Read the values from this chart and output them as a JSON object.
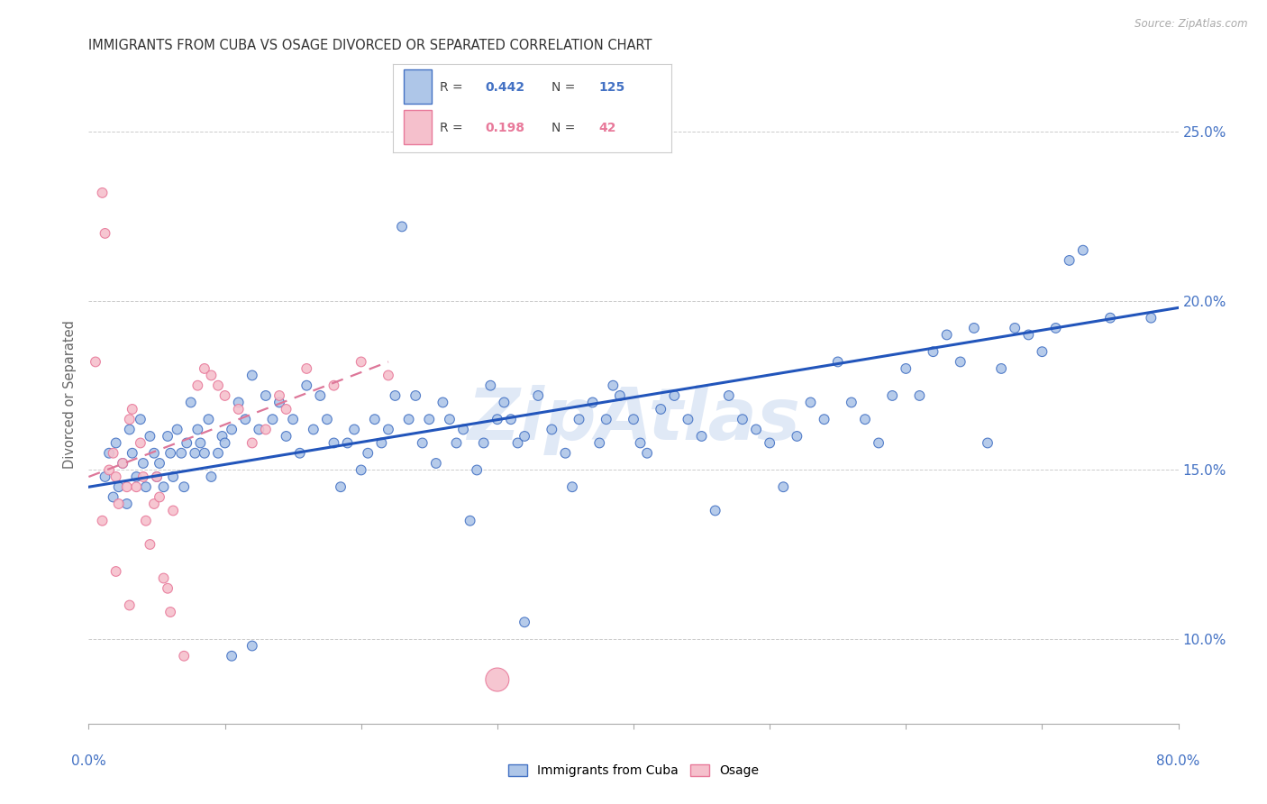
{
  "title": "IMMIGRANTS FROM CUBA VS OSAGE DIVORCED OR SEPARATED CORRELATION CHART",
  "source": "Source: ZipAtlas.com",
  "ylabel": "Divorced or Separated",
  "ytick_vals": [
    10.0,
    15.0,
    20.0,
    25.0
  ],
  "ytick_labels": [
    "10.0%",
    "15.0%",
    "20.0%",
    "25.0%"
  ],
  "xlim": [
    0.0,
    80.0
  ],
  "ylim": [
    7.5,
    27.0
  ],
  "legend_blue_r": "0.442",
  "legend_blue_n": "125",
  "legend_pink_r": "0.198",
  "legend_pink_n": "42",
  "blue_fill": "#aec6e8",
  "pink_fill": "#f5c0cc",
  "blue_edge": "#4472c4",
  "pink_edge": "#e8799a",
  "blue_line_color": "#2255bb",
  "pink_line_color": "#dd7799",
  "watermark": "ZipAtlas",
  "watermark_color": "#c8d8f0",
  "blue_scatter": [
    [
      1.2,
      14.8
    ],
    [
      1.5,
      15.5
    ],
    [
      1.8,
      14.2
    ],
    [
      2.0,
      15.8
    ],
    [
      2.2,
      14.5
    ],
    [
      2.5,
      15.2
    ],
    [
      2.8,
      14.0
    ],
    [
      3.0,
      16.2
    ],
    [
      3.2,
      15.5
    ],
    [
      3.5,
      14.8
    ],
    [
      3.8,
      16.5
    ],
    [
      4.0,
      15.2
    ],
    [
      4.2,
      14.5
    ],
    [
      4.5,
      16.0
    ],
    [
      4.8,
      15.5
    ],
    [
      5.0,
      14.8
    ],
    [
      5.2,
      15.2
    ],
    [
      5.5,
      14.5
    ],
    [
      5.8,
      16.0
    ],
    [
      6.0,
      15.5
    ],
    [
      6.2,
      14.8
    ],
    [
      6.5,
      16.2
    ],
    [
      6.8,
      15.5
    ],
    [
      7.0,
      14.5
    ],
    [
      7.2,
      15.8
    ],
    [
      7.5,
      17.0
    ],
    [
      7.8,
      15.5
    ],
    [
      8.0,
      16.2
    ],
    [
      8.2,
      15.8
    ],
    [
      8.5,
      15.5
    ],
    [
      8.8,
      16.5
    ],
    [
      9.0,
      14.8
    ],
    [
      9.5,
      15.5
    ],
    [
      9.8,
      16.0
    ],
    [
      10.0,
      15.8
    ],
    [
      10.5,
      16.2
    ],
    [
      11.0,
      17.0
    ],
    [
      11.5,
      16.5
    ],
    [
      12.0,
      17.8
    ],
    [
      12.5,
      16.2
    ],
    [
      13.0,
      17.2
    ],
    [
      13.5,
      16.5
    ],
    [
      14.0,
      17.0
    ],
    [
      14.5,
      16.0
    ],
    [
      15.0,
      16.5
    ],
    [
      15.5,
      15.5
    ],
    [
      16.0,
      17.5
    ],
    [
      16.5,
      16.2
    ],
    [
      17.0,
      17.2
    ],
    [
      17.5,
      16.5
    ],
    [
      18.0,
      15.8
    ],
    [
      18.5,
      14.5
    ],
    [
      19.0,
      15.8
    ],
    [
      19.5,
      16.2
    ],
    [
      20.0,
      15.0
    ],
    [
      20.5,
      15.5
    ],
    [
      21.0,
      16.5
    ],
    [
      21.5,
      15.8
    ],
    [
      22.0,
      16.2
    ],
    [
      22.5,
      17.2
    ],
    [
      23.0,
      22.2
    ],
    [
      23.5,
      16.5
    ],
    [
      24.0,
      17.2
    ],
    [
      24.5,
      15.8
    ],
    [
      25.0,
      16.5
    ],
    [
      25.5,
      15.2
    ],
    [
      26.0,
      17.0
    ],
    [
      26.5,
      16.5
    ],
    [
      27.0,
      15.8
    ],
    [
      27.5,
      16.2
    ],
    [
      28.0,
      13.5
    ],
    [
      28.5,
      15.0
    ],
    [
      29.0,
      15.8
    ],
    [
      29.5,
      17.5
    ],
    [
      30.0,
      16.5
    ],
    [
      30.5,
      17.0
    ],
    [
      31.0,
      16.5
    ],
    [
      31.5,
      15.8
    ],
    [
      32.0,
      16.0
    ],
    [
      33.0,
      17.2
    ],
    [
      34.0,
      16.2
    ],
    [
      35.0,
      15.5
    ],
    [
      35.5,
      14.5
    ],
    [
      36.0,
      16.5
    ],
    [
      37.0,
      17.0
    ],
    [
      37.5,
      15.8
    ],
    [
      38.0,
      16.5
    ],
    [
      38.5,
      17.5
    ],
    [
      39.0,
      17.2
    ],
    [
      40.0,
      16.5
    ],
    [
      40.5,
      15.8
    ],
    [
      41.0,
      15.5
    ],
    [
      42.0,
      16.8
    ],
    [
      43.0,
      17.2
    ],
    [
      44.0,
      16.5
    ],
    [
      45.0,
      16.0
    ],
    [
      46.0,
      13.8
    ],
    [
      47.0,
      17.2
    ],
    [
      48.0,
      16.5
    ],
    [
      49.0,
      16.2
    ],
    [
      50.0,
      15.8
    ],
    [
      51.0,
      14.5
    ],
    [
      52.0,
      16.0
    ],
    [
      53.0,
      17.0
    ],
    [
      54.0,
      16.5
    ],
    [
      55.0,
      18.2
    ],
    [
      56.0,
      17.0
    ],
    [
      57.0,
      16.5
    ],
    [
      58.0,
      15.8
    ],
    [
      59.0,
      17.2
    ],
    [
      60.0,
      18.0
    ],
    [
      61.0,
      17.2
    ],
    [
      62.0,
      18.5
    ],
    [
      63.0,
      19.0
    ],
    [
      64.0,
      18.2
    ],
    [
      65.0,
      19.2
    ],
    [
      66.0,
      15.8
    ],
    [
      67.0,
      18.0
    ],
    [
      68.0,
      19.2
    ],
    [
      69.0,
      19.0
    ],
    [
      70.0,
      18.5
    ],
    [
      71.0,
      19.2
    ],
    [
      72.0,
      21.2
    ],
    [
      73.0,
      21.5
    ],
    [
      75.0,
      19.5
    ],
    [
      78.0,
      19.5
    ],
    [
      10.5,
      9.5
    ],
    [
      12.0,
      9.8
    ],
    [
      32.0,
      10.5
    ]
  ],
  "blue_scatter_sizes": 60,
  "pink_scatter": [
    [
      0.5,
      18.2
    ],
    [
      1.0,
      23.2
    ],
    [
      1.2,
      22.0
    ],
    [
      1.5,
      15.0
    ],
    [
      1.8,
      15.5
    ],
    [
      2.0,
      14.8
    ],
    [
      2.2,
      14.0
    ],
    [
      2.5,
      15.2
    ],
    [
      2.8,
      14.5
    ],
    [
      3.0,
      16.5
    ],
    [
      3.2,
      16.8
    ],
    [
      3.5,
      14.5
    ],
    [
      3.8,
      15.8
    ],
    [
      4.0,
      14.8
    ],
    [
      4.2,
      13.5
    ],
    [
      4.5,
      12.8
    ],
    [
      4.8,
      14.0
    ],
    [
      5.0,
      14.8
    ],
    [
      5.2,
      14.2
    ],
    [
      5.5,
      11.8
    ],
    [
      5.8,
      11.5
    ],
    [
      6.0,
      10.8
    ],
    [
      6.2,
      13.8
    ],
    [
      7.0,
      9.5
    ],
    [
      8.0,
      17.5
    ],
    [
      8.5,
      18.0
    ],
    [
      9.0,
      17.8
    ],
    [
      9.5,
      17.5
    ],
    [
      10.0,
      17.2
    ],
    [
      11.0,
      16.8
    ],
    [
      12.0,
      15.8
    ],
    [
      13.0,
      16.2
    ],
    [
      14.0,
      17.2
    ],
    [
      14.5,
      16.8
    ],
    [
      16.0,
      18.0
    ],
    [
      18.0,
      17.5
    ],
    [
      20.0,
      18.2
    ],
    [
      22.0,
      17.8
    ],
    [
      30.0,
      8.8
    ],
    [
      1.0,
      13.5
    ],
    [
      2.0,
      12.0
    ],
    [
      3.0,
      11.0
    ]
  ],
  "pink_scatter_sizes": 60,
  "pink_big_idx": 38,
  "pink_big_size": 350,
  "blue_line_x": [
    0,
    80
  ],
  "blue_line_y": [
    14.5,
    19.8
  ],
  "pink_line_x": [
    0,
    22
  ],
  "pink_line_y": [
    14.8,
    18.2
  ]
}
